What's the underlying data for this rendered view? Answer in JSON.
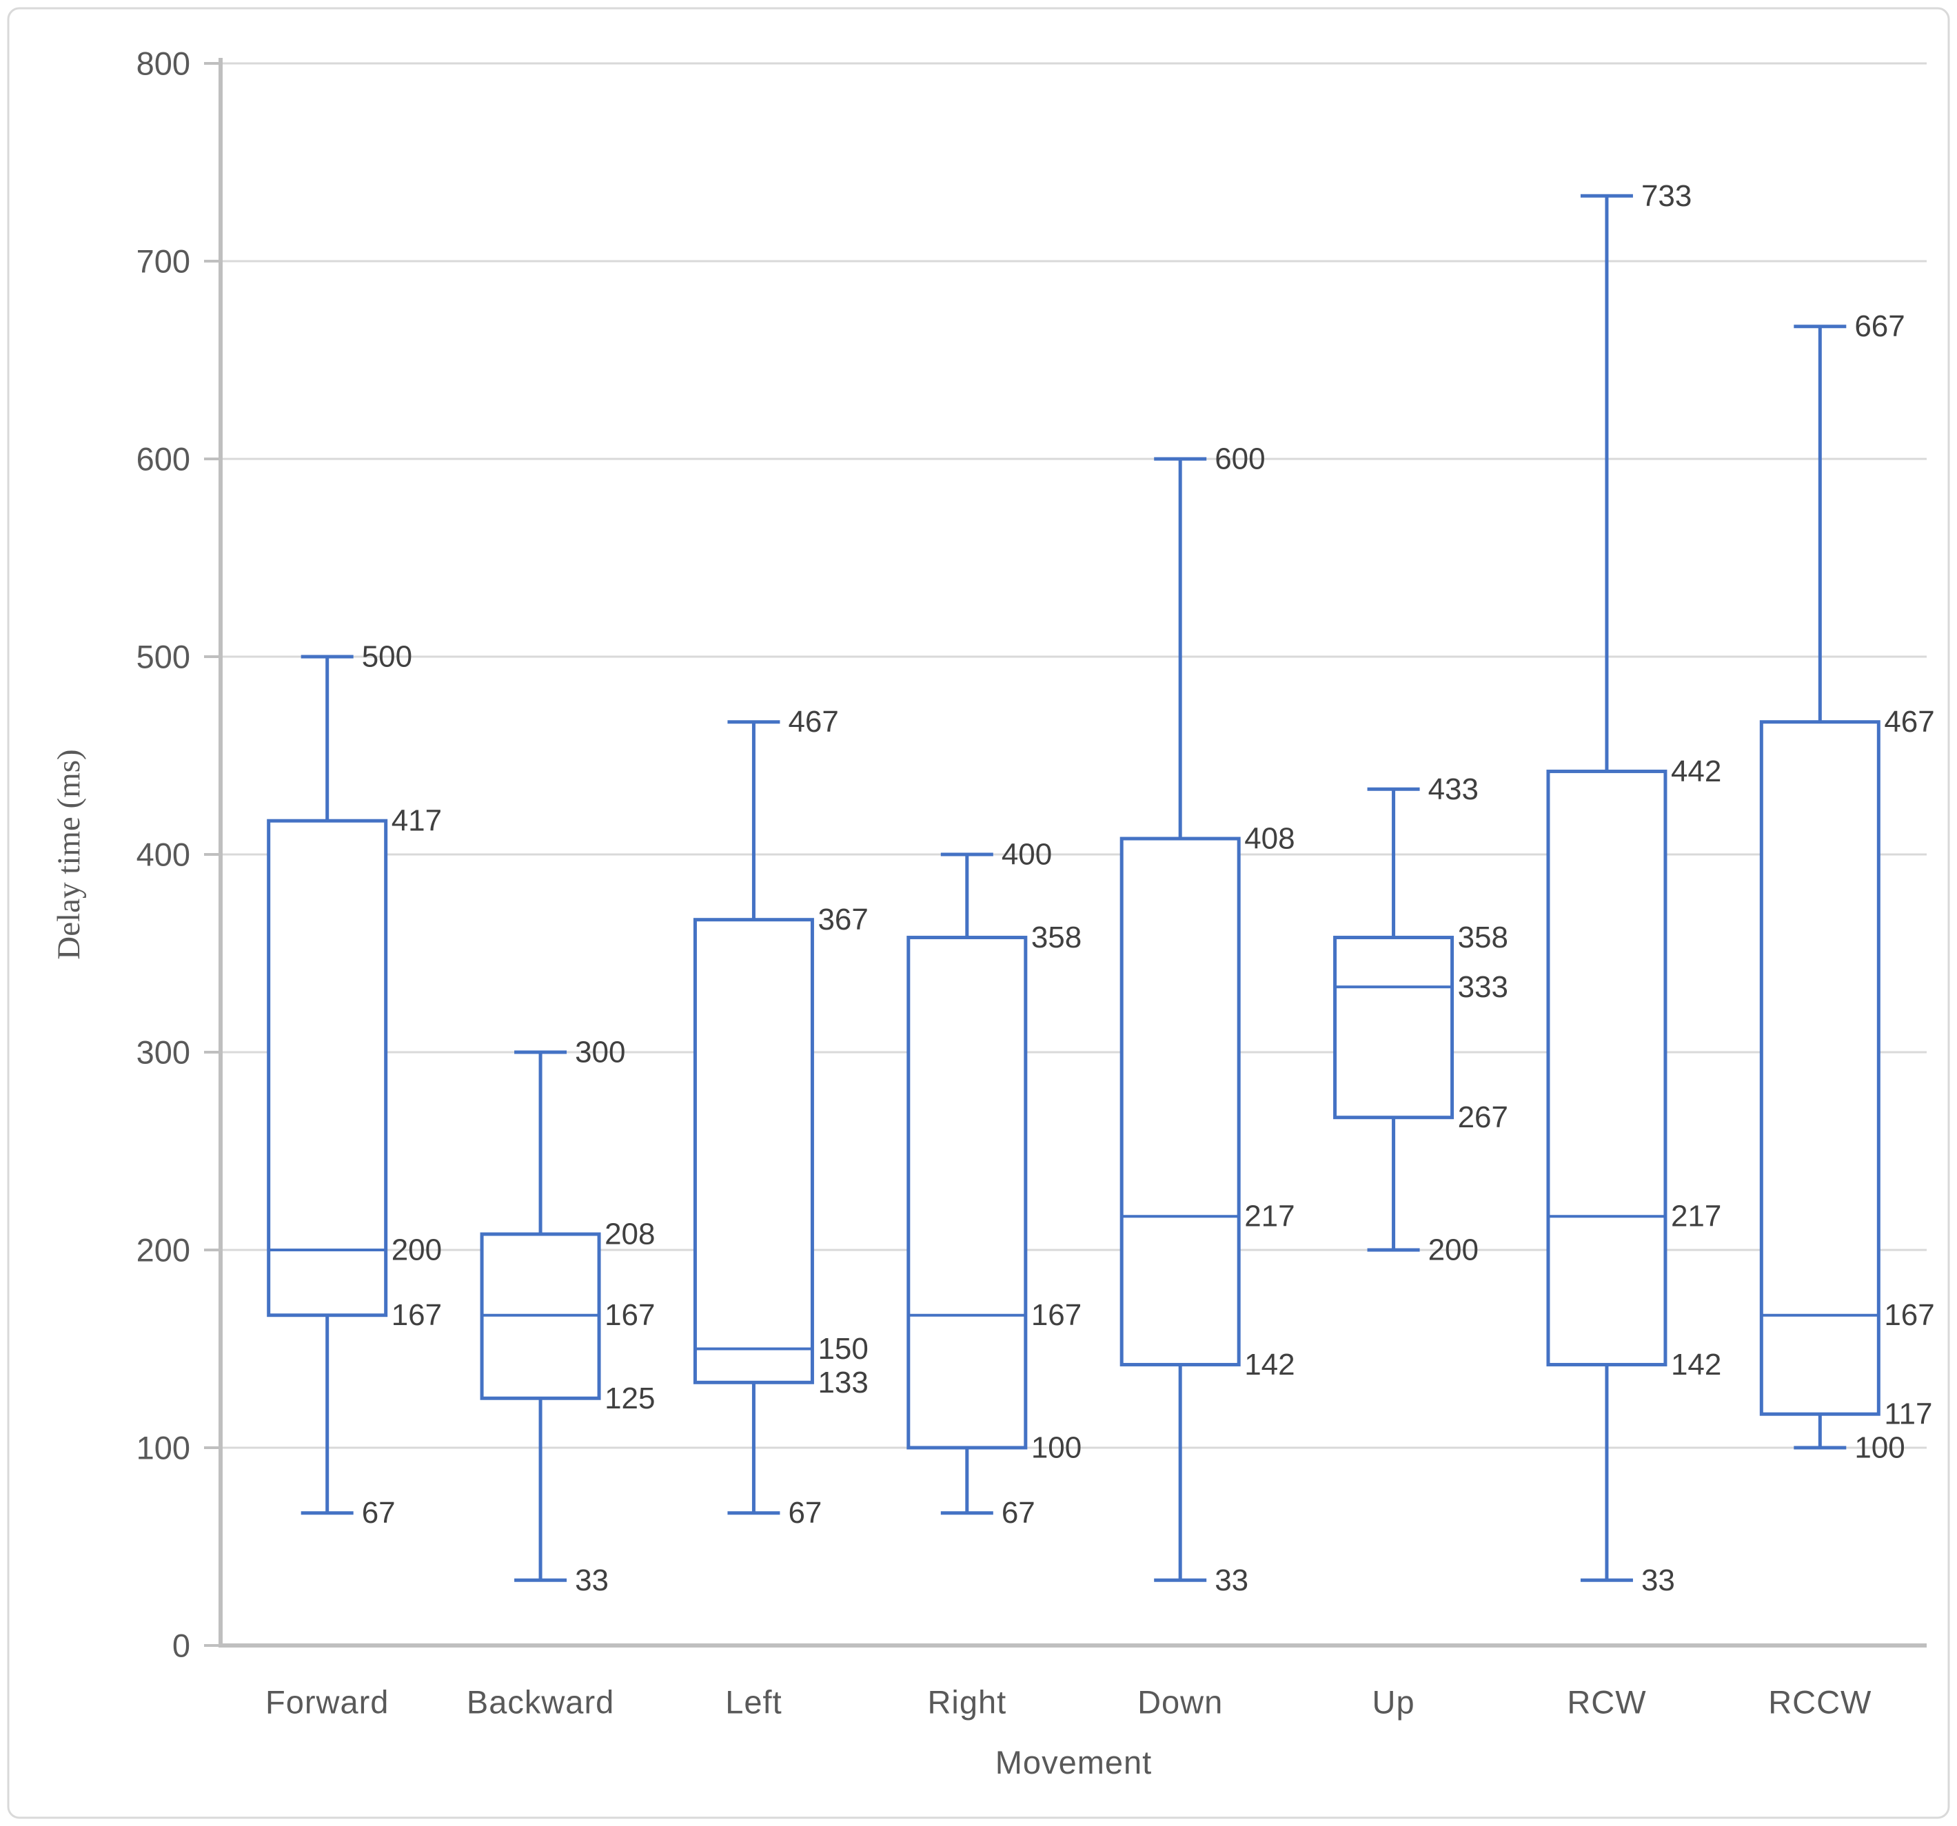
{
  "chart_data": {
    "type": "boxplot",
    "title": "",
    "xlabel": "Movement",
    "ylabel": "Delay time (ms)",
    "ylim": [
      0,
      800
    ],
    "ytick_step": 100,
    "ytick_labels": [
      "0",
      "100",
      "200",
      "300",
      "400",
      "500",
      "600",
      "700",
      "800"
    ],
    "grid": "horizontal",
    "legend_position": "none",
    "data_labels_visible": true,
    "categories": [
      "Forward",
      "Backward",
      "Left",
      "Right",
      "Down",
      "Up",
      "RCW",
      "RCCW"
    ],
    "series": [
      {
        "category": "Forward",
        "min": 67,
        "q1": 167,
        "median": 200,
        "q3": 417,
        "max": 500
      },
      {
        "category": "Backward",
        "min": 33,
        "q1": 125,
        "median": 167,
        "q3": 208,
        "max": 300
      },
      {
        "category": "Left",
        "min": 67,
        "q1": 133,
        "median": 150,
        "q3": 367,
        "max": 467
      },
      {
        "category": "Right",
        "min": 67,
        "q1": 100,
        "median": 167,
        "q3": 358,
        "max": 400
      },
      {
        "category": "Down",
        "min": 33,
        "q1": 142,
        "median": 217,
        "q3": 408,
        "max": 600
      },
      {
        "category": "Up",
        "min": 200,
        "q1": 267,
        "median": 333,
        "q3": 358,
        "max": 433
      },
      {
        "category": "RCW",
        "min": 33,
        "q1": 142,
        "median": 217,
        "q3": 442,
        "max": 733
      },
      {
        "category": "RCCW",
        "min": 100,
        "q1": 117,
        "median": 167,
        "q3": 467,
        "max": 667
      }
    ],
    "colors": {
      "box_stroke": "#4472C4",
      "box_fill": "#FFFFFF",
      "gridline": "#D9D9D9",
      "axis_line": "#BFBFBF",
      "tick_label": "#595959",
      "axis_title": "#595959",
      "data_label": "#404040",
      "background": "#FFFFFF",
      "chart_border": "#D9D9D9"
    }
  }
}
